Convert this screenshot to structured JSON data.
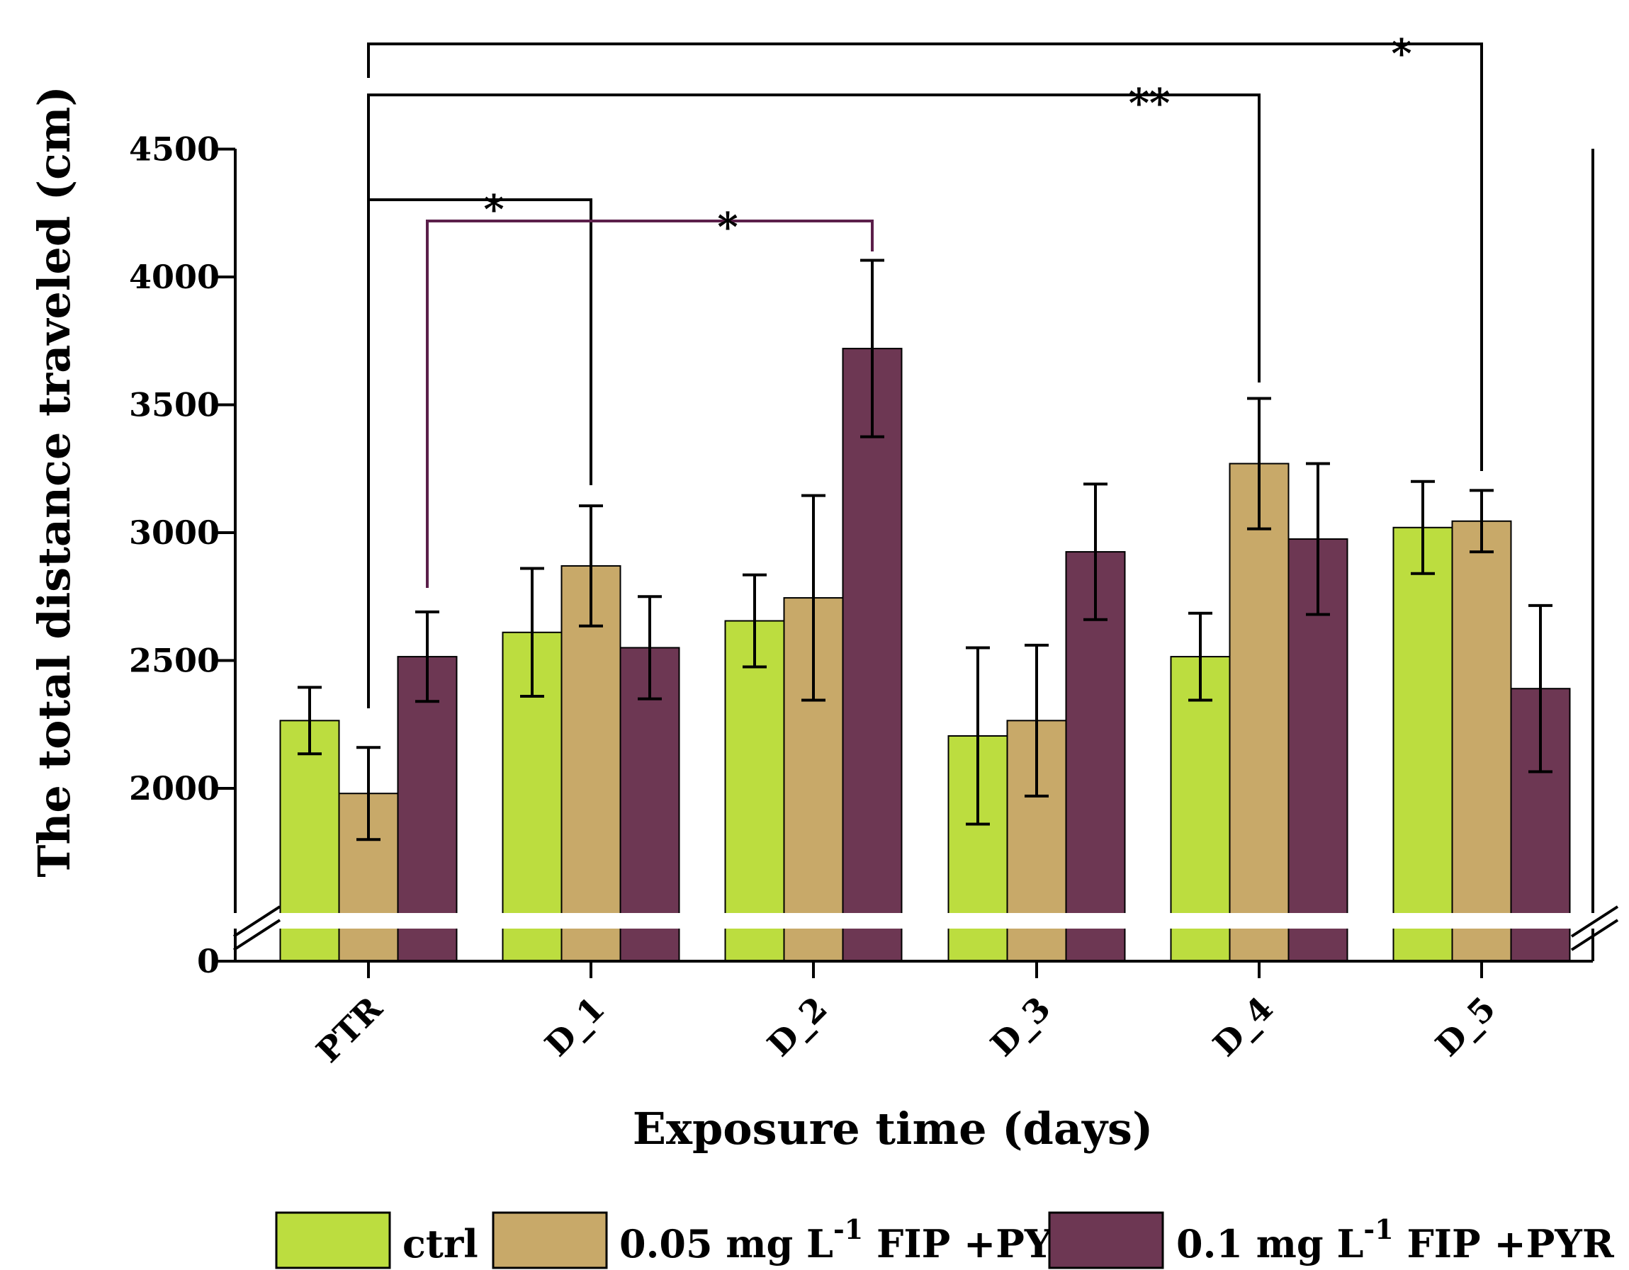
{
  "chart_data": {
    "type": "bar",
    "xlabel": "Exposure time (days)",
    "ylabel": "The total distance traveled (cm)",
    "categories": [
      "PTR",
      "D_1",
      "D_2",
      "D_3",
      "D_4",
      "D_5"
    ],
    "yticks": [
      "0",
      "2000",
      "2500",
      "3000",
      "3500",
      "4000",
      "4500"
    ],
    "ylim": [
      1500,
      4500
    ],
    "axis_break": "between 0 and 2000",
    "series": [
      {
        "name": "ctrl",
        "color": "#bcdd3f",
        "values": [
          2265,
          2610,
          2655,
          2205,
          2515,
          3020
        ],
        "errors": [
          130,
          250,
          180,
          345,
          170,
          180
        ]
      },
      {
        "name": "0.05 mg L-1 FIP +PYR",
        "color": "#c8a969",
        "values": [
          1980,
          2870,
          2745,
          2265,
          3270,
          3045
        ],
        "errors": [
          180,
          235,
          400,
          295,
          255,
          120
        ]
      },
      {
        "name": "0.1 mg L-1 FIP +PYR",
        "color": "#6d3753",
        "values": [
          2515,
          2550,
          3720,
          2925,
          2975,
          2390
        ],
        "errors": [
          175,
          200,
          345,
          265,
          295,
          325
        ]
      }
    ],
    "significance": [
      {
        "label": "*",
        "from": "PTR",
        "from_series": 1,
        "to": "D_1",
        "to_series": 1,
        "color": "#000000"
      },
      {
        "label": "*",
        "from": "PTR",
        "from_series": 2,
        "to": "D_2",
        "to_series": 2,
        "color": "#5b1f4a"
      },
      {
        "label": "**",
        "from": "PTR",
        "from_series": 1,
        "to": "D_4",
        "to_series": 1,
        "color": "#000000"
      },
      {
        "label": "*",
        "from": "PTR",
        "from_series": 1,
        "to": "D_5",
        "to_series": 1,
        "color": "#000000"
      }
    ],
    "legend": {
      "placement": "bottom",
      "items": [
        {
          "label": "ctrl",
          "sup": "",
          "suffix": ""
        },
        {
          "label": "0.05 mg L",
          "sup": "-1",
          "suffix": " FIP +PYR"
        },
        {
          "label": "0.1 mg L",
          "sup": "-1",
          "suffix": "  FIP +PYR"
        }
      ]
    }
  }
}
